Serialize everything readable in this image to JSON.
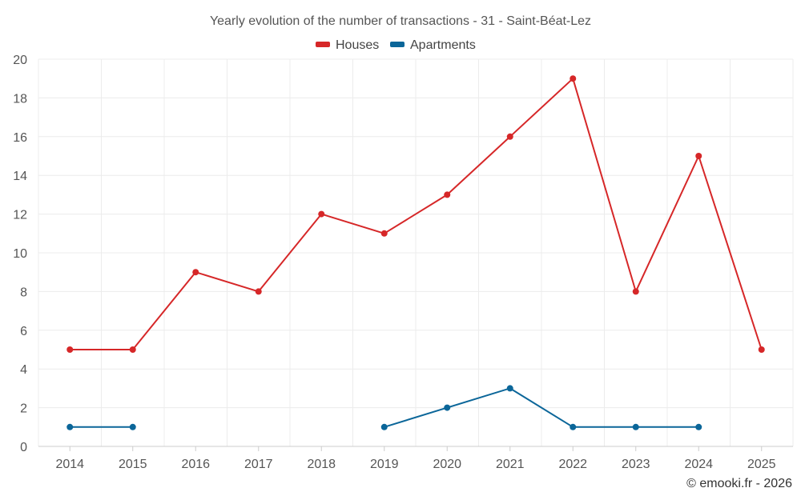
{
  "chart_data": {
    "type": "line",
    "title": "Yearly evolution of the number of transactions - 31 - Saint-Béat-Lez",
    "categories": [
      "2014",
      "2015",
      "2016",
      "2017",
      "2018",
      "2019",
      "2020",
      "2021",
      "2022",
      "2023",
      "2024",
      "2025"
    ],
    "ylim": [
      0,
      20
    ],
    "yticks": [
      0,
      2,
      4,
      6,
      8,
      10,
      12,
      14,
      16,
      18,
      20
    ],
    "grid": true,
    "legend_position": "top-center",
    "series": [
      {
        "name": "Houses",
        "color": "#d62728",
        "values": [
          5,
          5,
          9,
          8,
          12,
          11,
          13,
          16,
          19,
          8,
          15,
          5
        ]
      },
      {
        "name": "Apartments",
        "color": "#0b6699",
        "values": [
          1,
          1,
          null,
          null,
          null,
          1,
          2,
          3,
          1,
          1,
          1,
          null
        ]
      }
    ],
    "xlabel": "",
    "ylabel": ""
  },
  "credit": "© emooki.fr - 2026"
}
